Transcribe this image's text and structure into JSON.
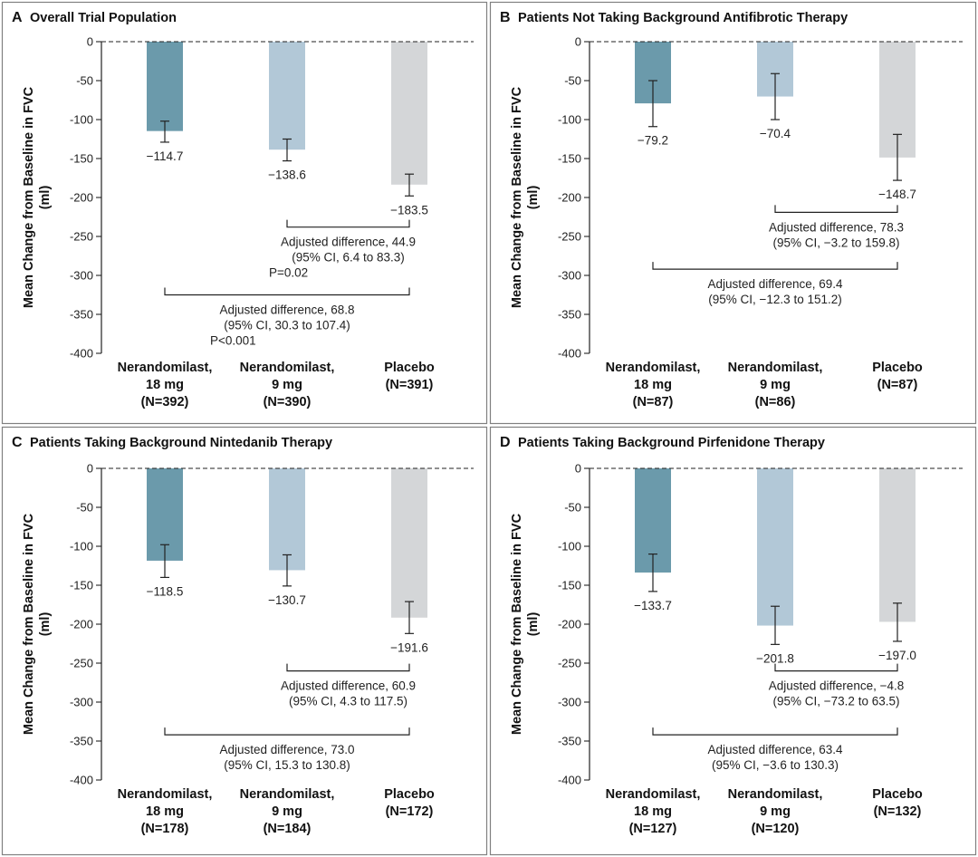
{
  "colors": {
    "bar_18mg": "#6b9aab",
    "bar_9mg": "#b2c8d7",
    "bar_placebo": "#d4d6d8",
    "axis": "#222222",
    "border": "#808080"
  },
  "chart_data": [
    {
      "type": "bar",
      "letter": "A",
      "title": "Overall Trial Population",
      "ylabel_line1": "Mean Change from Baseline in FVC",
      "ylabel_line2": "(ml)",
      "ylim": [
        -400,
        0
      ],
      "yticks": [
        0,
        -50,
        -100,
        -150,
        -200,
        -250,
        -300,
        -350,
        -400
      ],
      "ytick_labels": [
        "0",
        "-50",
        "-100",
        "-150",
        "-200",
        "-250",
        "-300",
        "-350",
        "-400"
      ],
      "bars": [
        {
          "name_line1": "Nerandomilast,",
          "name_line2": "18 mg",
          "n_label": "(N=392)",
          "value": -114.7,
          "value_label": "−114.7",
          "err_low": -129,
          "err_high": -102
        },
        {
          "name_line1": "Nerandomilast,",
          "name_line2": "9 mg",
          "n_label": "(N=390)",
          "value": -138.6,
          "value_label": "−138.6",
          "err_low": -153,
          "err_high": -125
        },
        {
          "name_line1": "",
          "name_line2": "Placebo",
          "n_label": "(N=391)",
          "value": -183.5,
          "value_label": "−183.5",
          "err_low": -198,
          "err_high": -170
        }
      ],
      "value_label_side": "below",
      "comparisons": [
        {
          "from": 1,
          "to": 2,
          "bracket_y": -238,
          "lines": [
            "Adjusted difference, 44.9",
            "(95% CI, 6.4 to 83.3)"
          ],
          "p_value": "P=0.02"
        },
        {
          "from": 0,
          "to": 2,
          "bracket_y": -325,
          "lines": [
            "Adjusted difference, 68.8",
            "(95% CI, 30.3 to 107.4)"
          ],
          "p_value": "P<0.001"
        }
      ]
    },
    {
      "type": "bar",
      "letter": "B",
      "title": "Patients Not Taking Background Antifibrotic Therapy",
      "ylabel_line1": "Mean Change from Baseline in FVC",
      "ylabel_line2": "(ml)",
      "ylim": [
        -400,
        0
      ],
      "yticks": [
        0,
        -50,
        -100,
        -150,
        -200,
        -250,
        -300,
        -350,
        -400
      ],
      "ytick_labels": [
        "0",
        "-50",
        "-100",
        "-150",
        "-200",
        "-250",
        "-300",
        "-350",
        "-400"
      ],
      "bars": [
        {
          "name_line1": "Nerandomilast,",
          "name_line2": "18 mg",
          "n_label": "(N=87)",
          "value": -79.2,
          "value_label": "−79.2",
          "err_low": -109,
          "err_high": -50
        },
        {
          "name_line1": "Nerandomilast,",
          "name_line2": "9 mg",
          "n_label": "(N=86)",
          "value": -70.4,
          "value_label": "−70.4",
          "err_low": -100,
          "err_high": -41
        },
        {
          "name_line1": "",
          "name_line2": "Placebo",
          "n_label": "(N=87)",
          "value": -148.7,
          "value_label": "−148.7",
          "err_low": -178,
          "err_high": -119
        }
      ],
      "value_label_side": "below",
      "comparisons": [
        {
          "from": 1,
          "to": 2,
          "bracket_y": -219,
          "lines": [
            "Adjusted difference, 78.3",
            "(95% CI, −3.2 to 159.8)"
          ],
          "p_value": ""
        },
        {
          "from": 0,
          "to": 2,
          "bracket_y": -292,
          "lines": [
            "Adjusted difference, 69.4",
            "(95% CI, −12.3 to 151.2)"
          ],
          "p_value": ""
        }
      ]
    },
    {
      "type": "bar",
      "letter": "C",
      "title": "Patients Taking Background Nintedanib Therapy",
      "ylabel_line1": "Mean Change from Baseline in FVC",
      "ylabel_line2": "(ml)",
      "ylim": [
        -400,
        0
      ],
      "yticks": [
        0,
        -50,
        -100,
        -150,
        -200,
        -250,
        -300,
        -350,
        -400
      ],
      "ytick_labels": [
        "0",
        "-50",
        "-100",
        "-150",
        "-200",
        "-250",
        "-300",
        "-350",
        "-400"
      ],
      "bars": [
        {
          "name_line1": "Nerandomilast,",
          "name_line2": "18 mg",
          "n_label": "(N=178)",
          "value": -118.5,
          "value_label": "−118.5",
          "err_low": -140,
          "err_high": -98
        },
        {
          "name_line1": "Nerandomilast,",
          "name_line2": "9 mg",
          "n_label": "(N=184)",
          "value": -130.7,
          "value_label": "−130.7",
          "err_low": -151,
          "err_high": -111
        },
        {
          "name_line1": "",
          "name_line2": "Placebo",
          "n_label": "(N=172)",
          "value": -191.6,
          "value_label": "−191.6",
          "err_low": -212,
          "err_high": -171
        }
      ],
      "value_label_side": "below",
      "comparisons": [
        {
          "from": 1,
          "to": 2,
          "bracket_y": -260,
          "lines": [
            "Adjusted difference, 60.9",
            "(95% CI, 4.3 to 117.5)"
          ],
          "p_value": ""
        },
        {
          "from": 0,
          "to": 2,
          "bracket_y": -342,
          "lines": [
            "Adjusted difference, 73.0",
            "(95% CI, 15.3 to 130.8)"
          ],
          "p_value": ""
        }
      ]
    },
    {
      "type": "bar",
      "letter": "D",
      "title": "Patients Taking Background Pirfenidone Therapy",
      "ylabel_line1": "Mean Change from Baseline in FVC",
      "ylabel_line2": "(ml)",
      "ylim": [
        -400,
        0
      ],
      "yticks": [
        0,
        -50,
        -100,
        -150,
        -200,
        -250,
        -300,
        -350,
        -400
      ],
      "ytick_labels": [
        "0",
        "-50",
        "-100",
        "-150",
        "-200",
        "-250",
        "-300",
        "-350",
        "-400"
      ],
      "bars": [
        {
          "name_line1": "Nerandomilast,",
          "name_line2": "18 mg",
          "n_label": "(N=127)",
          "value": -133.7,
          "value_label": "−133.7",
          "err_low": -158,
          "err_high": -110
        },
        {
          "name_line1": "Nerandomilast,",
          "name_line2": "9 mg",
          "n_label": "(N=120)",
          "value": -201.8,
          "value_label": "−201.8",
          "err_low": -226,
          "err_high": -177
        },
        {
          "name_line1": "",
          "name_line2": "Placebo",
          "n_label": "(N=132)",
          "value": -197.0,
          "value_label": "−197.0",
          "err_low": -222,
          "err_high": -173
        }
      ],
      "value_label_side": "below",
      "comparisons": [
        {
          "from": 1,
          "to": 2,
          "bracket_y": -260,
          "lines": [
            "Adjusted difference, −4.8",
            "(95% CI, −73.2 to 63.5)"
          ],
          "p_value": ""
        },
        {
          "from": 0,
          "to": 2,
          "bracket_y": -342,
          "lines": [
            "Adjusted difference, 63.4",
            "(95% CI, −3.6 to 130.3)"
          ],
          "p_value": ""
        }
      ]
    }
  ]
}
